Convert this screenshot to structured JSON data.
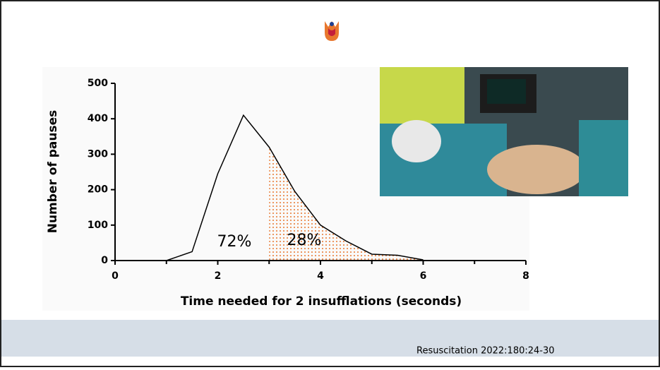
{
  "chart_data": {
    "type": "line",
    "x_label": "Time needed for 2 insufflations (seconds)",
    "y_label": "Number of pauses",
    "x": [
      1,
      1.5,
      2,
      2.5,
      3,
      3.5,
      4,
      4.5,
      5,
      5.5,
      6
    ],
    "series": [
      {
        "color": "#000000",
        "values": [
          0,
          25,
          245,
          410,
          320,
          195,
          100,
          55,
          18,
          15,
          2
        ]
      }
    ],
    "xlim": [
      0,
      8
    ],
    "xticks": [
      0,
      2,
      4,
      6,
      8
    ],
    "xminorticks": [
      1,
      3,
      5,
      7
    ],
    "ylim": [
      0,
      500
    ],
    "yticks": [
      0,
      100,
      200,
      300,
      400,
      500
    ],
    "highlight_from": 3,
    "highlight_color": "#e8772e",
    "annotations": [
      "72%",
      "28%"
    ]
  },
  "footer": {
    "citation": "Resuscitation 2022:180:24-30"
  }
}
